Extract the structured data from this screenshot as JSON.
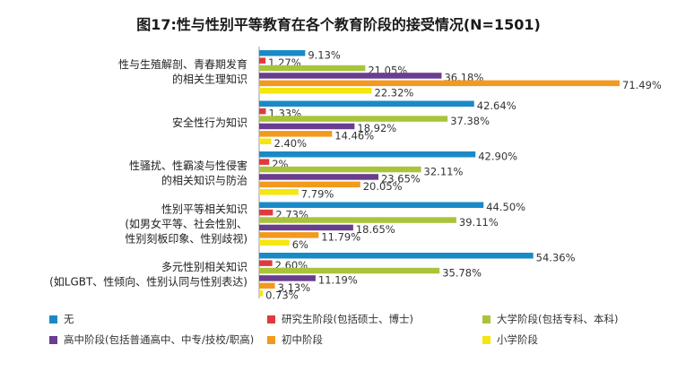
{
  "chart_data": {
    "type": "bar",
    "orientation": "horizontal",
    "title": "图17:性与性别平等教育在各个教育阶段的接受情况(N=1501)",
    "categories": [
      [
        "性与生殖解剖、青春期发育",
        "的相关生理知识"
      ],
      [
        "安全性行为知识"
      ],
      [
        "性骚扰、性霸凌与性侵害",
        "的相关知识与防治"
      ],
      [
        "性别平等相关知识",
        "(如男女平等、社会性别、",
        "性别刻板印象、性别歧视)"
      ],
      [
        "多元性别相关知识",
        "(如LGBT、性倾向、性别认同与性别表达)"
      ]
    ],
    "series": [
      {
        "name": "无",
        "color": "#1a8ac6",
        "values": [
          9.13,
          42.64,
          42.9,
          44.5,
          54.36
        ],
        "labels": [
          "9.13%",
          "42.64%",
          "42.90%",
          "44.50%",
          "54.36%"
        ]
      },
      {
        "name": "研究生阶段(包括硕士、博士)",
        "color": "#e03a3e",
        "values": [
          1.27,
          1.33,
          2,
          2.73,
          2.6
        ],
        "labels": [
          "1.27%",
          "1.33%",
          "2%",
          "2.73%",
          "2.60%"
        ]
      },
      {
        "name": "大学阶段(包括专科、本科)",
        "color": "#a9c43a",
        "values": [
          21.05,
          37.38,
          32.11,
          39.11,
          35.78
        ],
        "labels": [
          "21.05%",
          "37.38%",
          "32.11%",
          "39.11%",
          "35.78%"
        ]
      },
      {
        "name": "高中阶段(包括普通高中、中专/技校/职高)",
        "color": "#6a3d8e",
        "values": [
          36.18,
          18.92,
          23.65,
          18.65,
          11.19
        ],
        "labels": [
          "36.18%",
          "18.92%",
          "23.65%",
          "18.65%",
          "11.19%"
        ]
      },
      {
        "name": "初中阶段",
        "color": "#f29a1e",
        "values": [
          71.49,
          14.46,
          20.05,
          11.79,
          3.13
        ],
        "labels": [
          "71.49%",
          "14.46%",
          "20.05%",
          "11.79%",
          "3.13%"
        ]
      },
      {
        "name": "小学阶段",
        "color": "#f5e60f",
        "values": [
          22.32,
          2.4,
          7.79,
          6,
          0.73
        ],
        "labels": [
          "22.32%",
          "2.40%",
          "7.79%",
          "6%",
          "0.73%"
        ]
      }
    ],
    "xlim": [
      0,
      75
    ],
    "grid": false,
    "legend_placement": "bottom"
  }
}
